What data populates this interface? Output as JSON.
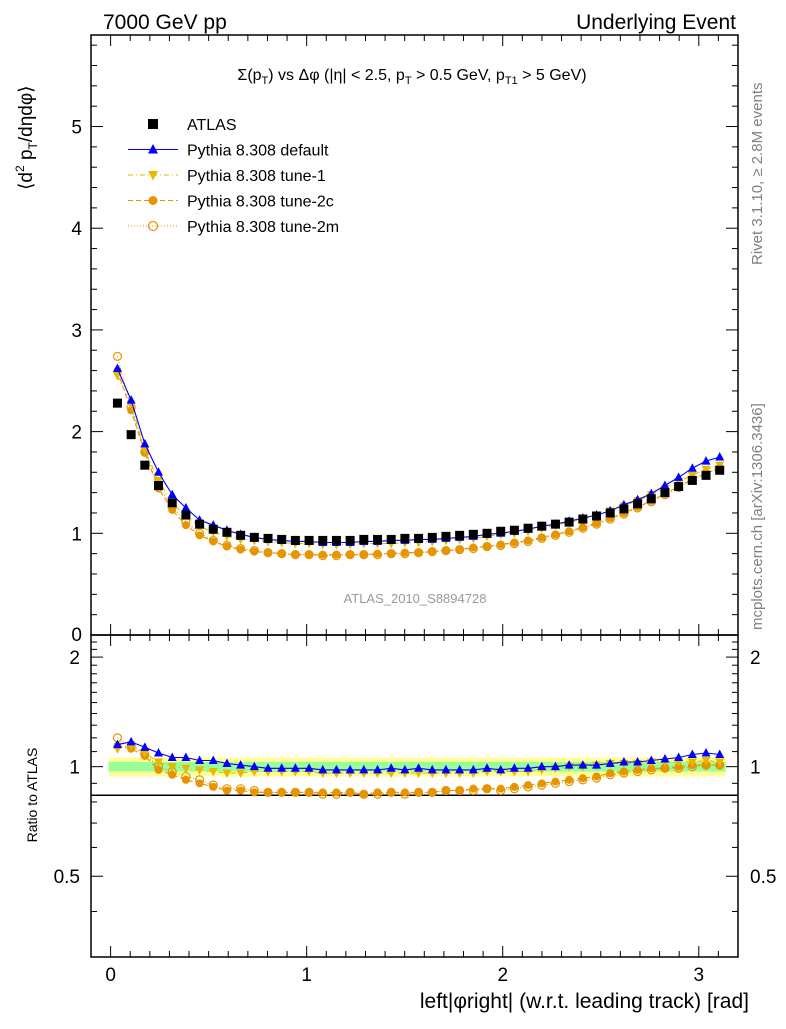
{
  "header": {
    "left": "7000 GeV pp",
    "right": "Underlying Event"
  },
  "side_labels": {
    "rivet": "Rivet 3.1.10, ≥ 2.8M events",
    "mcplots": "mcplots.cern.ch [arXiv:1306.3436]"
  },
  "colors": {
    "atlas": "#000000",
    "default": "#0000ff",
    "tune1": "#e6b800",
    "tune2c": "#e69500",
    "tune2m": "#e69500",
    "band_yellow": "#ffff99",
    "band_green": "#99ff99"
  },
  "chart_data": [
    {
      "type": "scatter",
      "title": "Σ(p_T) vs Δφ (|η| < 2.5, p_T > 0.5 GeV, p_T1 > 5 GeV)",
      "ylabel": "⟨d² p_T/dηdφ⟩",
      "xlim": [
        -0.1,
        3.2
      ],
      "ylim": [
        0,
        5.9
      ],
      "yticks": [
        "1",
        "2",
        "3",
        "4",
        "5"
      ],
      "y_zero_label": "0",
      "watermark": "ATLAS_2010_S8894728",
      "legend_position": "top-left",
      "x": [
        0.0349,
        0.1047,
        0.1745,
        0.2443,
        0.3142,
        0.384,
        0.4538,
        0.5236,
        0.5934,
        0.6632,
        0.733,
        0.8029,
        0.8727,
        0.9425,
        1.0123,
        1.0821,
        1.1519,
        1.2217,
        1.2915,
        1.3614,
        1.4312,
        1.501,
        1.5708,
        1.6406,
        1.7104,
        1.7802,
        1.85,
        1.9199,
        1.9897,
        2.0595,
        2.1293,
        2.1991,
        2.2689,
        2.3387,
        2.4086,
        2.4784,
        2.5482,
        2.618,
        2.6878,
        2.7576,
        2.8274,
        2.8972,
        2.9671,
        3.0369,
        3.1067
      ],
      "series": [
        {
          "name": "ATLAS",
          "marker": "square",
          "values": [
            2.28,
            1.97,
            1.67,
            1.47,
            1.3,
            1.18,
            1.09,
            1.04,
            1.01,
            0.98,
            0.96,
            0.95,
            0.94,
            0.93,
            0.93,
            0.93,
            0.93,
            0.93,
            0.94,
            0.94,
            0.94,
            0.95,
            0.95,
            0.96,
            0.97,
            0.98,
            0.99,
            1.0,
            1.02,
            1.03,
            1.05,
            1.07,
            1.09,
            1.11,
            1.14,
            1.17,
            1.2,
            1.24,
            1.29,
            1.34,
            1.4,
            1.46,
            1.52,
            1.57,
            1.62
          ]
        },
        {
          "name": "Pythia 8.308 default",
          "marker": "triangle-up",
          "values": [
            2.62,
            2.31,
            1.88,
            1.6,
            1.38,
            1.25,
            1.13,
            1.08,
            1.03,
            0.99,
            0.96,
            0.94,
            0.93,
            0.92,
            0.92,
            0.91,
            0.91,
            0.91,
            0.92,
            0.92,
            0.93,
            0.93,
            0.94,
            0.94,
            0.95,
            0.96,
            0.97,
            0.99,
            1.0,
            1.02,
            1.04,
            1.07,
            1.09,
            1.12,
            1.15,
            1.18,
            1.22,
            1.28,
            1.33,
            1.39,
            1.47,
            1.55,
            1.64,
            1.71,
            1.75
          ]
        },
        {
          "name": "Pythia 8.308 tune-1",
          "marker": "triangle-down",
          "values": [
            2.55,
            2.27,
            1.82,
            1.52,
            1.3,
            1.17,
            1.07,
            1.01,
            0.97,
            0.94,
            0.93,
            0.92,
            0.91,
            0.9,
            0.9,
            0.89,
            0.89,
            0.89,
            0.9,
            0.9,
            0.9,
            0.91,
            0.91,
            0.92,
            0.93,
            0.94,
            0.95,
            0.97,
            0.99,
            1.0,
            1.02,
            1.05,
            1.08,
            1.11,
            1.14,
            1.18,
            1.22,
            1.27,
            1.32,
            1.38,
            1.44,
            1.51,
            1.57,
            1.63,
            1.67
          ]
        },
        {
          "name": "Pythia 8.308 tune-2c",
          "marker": "circle",
          "values": [
            2.6,
            2.21,
            1.79,
            1.44,
            1.23,
            1.08,
            0.98,
            0.92,
            0.87,
            0.84,
            0.82,
            0.81,
            0.8,
            0.79,
            0.79,
            0.79,
            0.79,
            0.79,
            0.79,
            0.8,
            0.8,
            0.81,
            0.81,
            0.82,
            0.83,
            0.84,
            0.86,
            0.87,
            0.89,
            0.91,
            0.93,
            0.96,
            0.99,
            1.02,
            1.06,
            1.1,
            1.15,
            1.2,
            1.26,
            1.32,
            1.39,
            1.46,
            1.53,
            1.59,
            1.64
          ]
        },
        {
          "name": "Pythia 8.308 tune-2m",
          "marker": "open-circle",
          "values": [
            2.74,
            2.24,
            1.8,
            1.47,
            1.26,
            1.11,
            1.0,
            0.93,
            0.88,
            0.85,
            0.83,
            0.81,
            0.8,
            0.79,
            0.79,
            0.78,
            0.78,
            0.79,
            0.79,
            0.79,
            0.8,
            0.8,
            0.81,
            0.82,
            0.83,
            0.84,
            0.85,
            0.87,
            0.88,
            0.9,
            0.92,
            0.95,
            0.98,
            1.01,
            1.05,
            1.09,
            1.14,
            1.19,
            1.25,
            1.31,
            1.38,
            1.45,
            1.52,
            1.59,
            1.64
          ]
        }
      ]
    },
    {
      "type": "scatter",
      "ylabel": "Ratio to ATLAS",
      "xlabel": "left|φright| (w.r.t. leading track) [rad]",
      "xlim": [
        -0.1,
        3.2
      ],
      "ylim": [
        0.3,
        2.3
      ],
      "yticks": [
        "0.5",
        "1",
        "2"
      ],
      "xticks": [
        "0",
        "1",
        "2",
        "3"
      ],
      "bands": [
        {
          "color": "yellow",
          "lo": 0.94,
          "hi": 1.06
        },
        {
          "color": "green",
          "lo": 0.97,
          "hi": 1.03
        }
      ],
      "series": [
        {
          "name": "Pythia 8.308 default",
          "values": [
            1.15,
            1.17,
            1.13,
            1.09,
            1.06,
            1.06,
            1.04,
            1.04,
            1.02,
            1.01,
            1.0,
            0.99,
            0.99,
            0.99,
            0.99,
            0.98,
            0.98,
            0.98,
            0.98,
            0.98,
            0.99,
            0.98,
            0.99,
            0.98,
            0.98,
            0.98,
            0.98,
            0.99,
            0.98,
            0.99,
            0.99,
            1.0,
            1.0,
            1.01,
            1.01,
            1.01,
            1.02,
            1.03,
            1.03,
            1.04,
            1.05,
            1.06,
            1.08,
            1.09,
            1.08
          ]
        },
        {
          "name": "Pythia 8.308 tune-1",
          "values": [
            1.12,
            1.15,
            1.09,
            1.03,
            1.0,
            0.99,
            0.98,
            0.97,
            0.96,
            0.96,
            0.97,
            0.97,
            0.97,
            0.97,
            0.97,
            0.96,
            0.96,
            0.96,
            0.96,
            0.96,
            0.96,
            0.96,
            0.96,
            0.96,
            0.96,
            0.96,
            0.96,
            0.97,
            0.97,
            0.97,
            0.97,
            0.98,
            0.99,
            1.0,
            1.0,
            1.01,
            1.02,
            1.02,
            1.02,
            1.03,
            1.03,
            1.03,
            1.03,
            1.04,
            1.03
          ]
        },
        {
          "name": "Pythia 8.308 tune-2c",
          "values": [
            1.14,
            1.12,
            1.07,
            0.98,
            0.95,
            0.92,
            0.9,
            0.88,
            0.86,
            0.86,
            0.85,
            0.85,
            0.85,
            0.85,
            0.85,
            0.85,
            0.85,
            0.85,
            0.84,
            0.85,
            0.85,
            0.85,
            0.85,
            0.85,
            0.86,
            0.86,
            0.87,
            0.87,
            0.87,
            0.88,
            0.89,
            0.9,
            0.91,
            0.92,
            0.93,
            0.94,
            0.96,
            0.97,
            0.98,
            0.99,
            0.99,
            1.0,
            1.01,
            1.01,
            1.01
          ]
        },
        {
          "name": "Pythia 8.308 tune-2m",
          "values": [
            1.2,
            1.14,
            1.08,
            1.0,
            0.97,
            0.94,
            0.92,
            0.89,
            0.87,
            0.87,
            0.86,
            0.85,
            0.85,
            0.85,
            0.85,
            0.84,
            0.84,
            0.85,
            0.84,
            0.84,
            0.85,
            0.84,
            0.85,
            0.85,
            0.86,
            0.86,
            0.86,
            0.87,
            0.86,
            0.87,
            0.88,
            0.89,
            0.9,
            0.91,
            0.92,
            0.93,
            0.95,
            0.96,
            0.97,
            0.98,
            0.99,
            0.99,
            1.0,
            1.01,
            1.01
          ]
        }
      ]
    }
  ]
}
